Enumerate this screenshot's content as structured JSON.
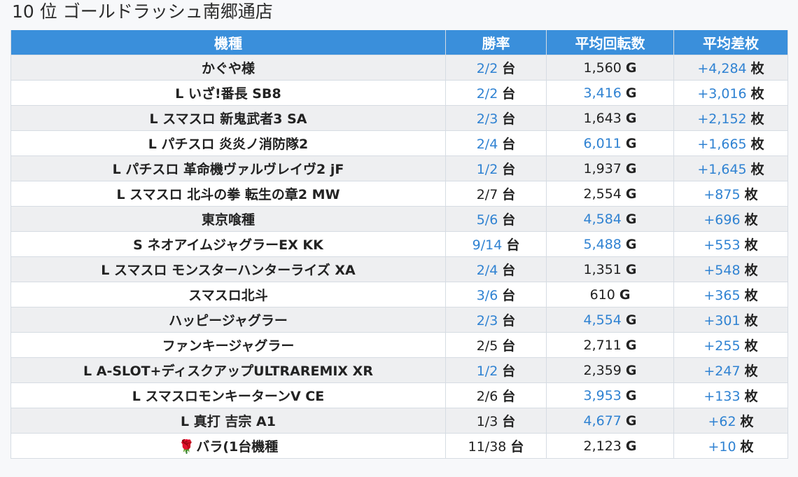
{
  "title": "10 位 ゴールドラッシュ南郷通店",
  "headers": {
    "model": "機種",
    "win_rate": "勝率",
    "avg_spins": "平均回転数",
    "avg_diff": "平均差枚"
  },
  "units": {
    "machines": "台",
    "games": "G",
    "medals": "枚"
  },
  "rows": [
    {
      "model": "かぐや様",
      "win_rate": "2/2",
      "win_hi": true,
      "spins": "1,560",
      "spins_hi": false,
      "diff": "+4,284",
      "diff_hi": true
    },
    {
      "model": "L いざ!番長 SB8",
      "win_rate": "2/2",
      "win_hi": true,
      "spins": "3,416",
      "spins_hi": true,
      "diff": "+3,016",
      "diff_hi": true
    },
    {
      "model": "L スマスロ 新鬼武者3 SA",
      "win_rate": "2/3",
      "win_hi": true,
      "spins": "1,643",
      "spins_hi": false,
      "diff": "+2,152",
      "diff_hi": true
    },
    {
      "model": "L パチスロ 炎炎ノ消防隊2",
      "win_rate": "2/4",
      "win_hi": true,
      "spins": "6,011",
      "spins_hi": true,
      "diff": "+1,665",
      "diff_hi": true
    },
    {
      "model": "L パチスロ 革命機ヴァルヴレイヴ2 jF",
      "win_rate": "1/2",
      "win_hi": true,
      "spins": "1,937",
      "spins_hi": false,
      "diff": "+1,645",
      "diff_hi": true
    },
    {
      "model": "L スマスロ 北斗の拳 転生の章2 MW",
      "win_rate": "2/7",
      "win_hi": false,
      "spins": "2,554",
      "spins_hi": false,
      "diff": "+875",
      "diff_hi": true
    },
    {
      "model": "東京喰種",
      "win_rate": "5/6",
      "win_hi": true,
      "spins": "4,584",
      "spins_hi": true,
      "diff": "+696",
      "diff_hi": true
    },
    {
      "model": "S ネオアイムジャグラーEX KK",
      "win_rate": "9/14",
      "win_hi": true,
      "spins": "5,488",
      "spins_hi": true,
      "diff": "+553",
      "diff_hi": true
    },
    {
      "model": "L スマスロ モンスターハンターライズ XA",
      "win_rate": "2/4",
      "win_hi": true,
      "spins": "1,351",
      "spins_hi": false,
      "diff": "+548",
      "diff_hi": true
    },
    {
      "model": "スマスロ北斗",
      "win_rate": "3/6",
      "win_hi": true,
      "spins": "610",
      "spins_hi": false,
      "diff": "+365",
      "diff_hi": true
    },
    {
      "model": "ハッピージャグラー",
      "win_rate": "2/3",
      "win_hi": true,
      "spins": "4,554",
      "spins_hi": true,
      "diff": "+301",
      "diff_hi": true
    },
    {
      "model": "ファンキージャグラー",
      "win_rate": "2/5",
      "win_hi": false,
      "spins": "2,711",
      "spins_hi": false,
      "diff": "+255",
      "diff_hi": true
    },
    {
      "model": "L A-SLOT+ディスクアップULTRAREMIX XR",
      "win_rate": "1/2",
      "win_hi": true,
      "spins": "2,359",
      "spins_hi": false,
      "diff": "+247",
      "diff_hi": true
    },
    {
      "model": "L スマスロモンキーターンⅤ CE",
      "win_rate": "2/6",
      "win_hi": false,
      "spins": "3,953",
      "spins_hi": true,
      "diff": "+133",
      "diff_hi": true
    },
    {
      "model": "L 真打 吉宗 A1",
      "win_rate": "1/3",
      "win_hi": false,
      "spins": "4,677",
      "spins_hi": true,
      "diff": "+62",
      "diff_hi": true
    },
    {
      "model": "バラ(1台機種",
      "model_icon": "rose-icon",
      "win_rate": "11/38",
      "win_hi": false,
      "spins": "2,123",
      "spins_hi": false,
      "diff": "+10",
      "diff_hi": true
    }
  ]
}
